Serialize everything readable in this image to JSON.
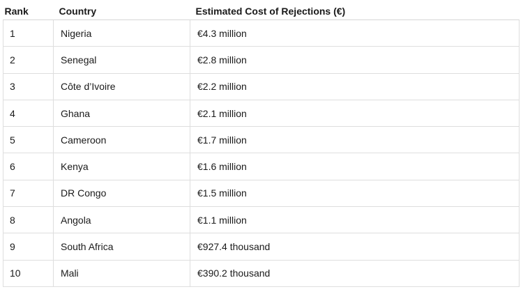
{
  "table": {
    "headers": {
      "rank": "Rank",
      "country": "Country",
      "cost": "Estimated Cost of Rejections (€)"
    },
    "rows": [
      {
        "rank": "1",
        "country": "Nigeria",
        "cost": "€4.3 million"
      },
      {
        "rank": "2",
        "country": "Senegal",
        "cost": "€2.8 million"
      },
      {
        "rank": "3",
        "country": "Côte d’Ivoire",
        "cost": "€2.2 million"
      },
      {
        "rank": "4",
        "country": "Ghana",
        "cost": "€2.1 million"
      },
      {
        "rank": "5",
        "country": "Cameroon",
        "cost": "€1.7 million"
      },
      {
        "rank": "6",
        "country": "Kenya",
        "cost": "€1.6 million"
      },
      {
        "rank": "7",
        "country": "DR Congo",
        "cost": "€1.5 million"
      },
      {
        "rank": "8",
        "country": "Angola",
        "cost": "€1.1 million"
      },
      {
        "rank": "9",
        "country": "South Africa",
        "cost": "€927.4 thousand"
      },
      {
        "rank": "10",
        "country": "Mali",
        "cost": "€390.2 thousand"
      }
    ]
  }
}
